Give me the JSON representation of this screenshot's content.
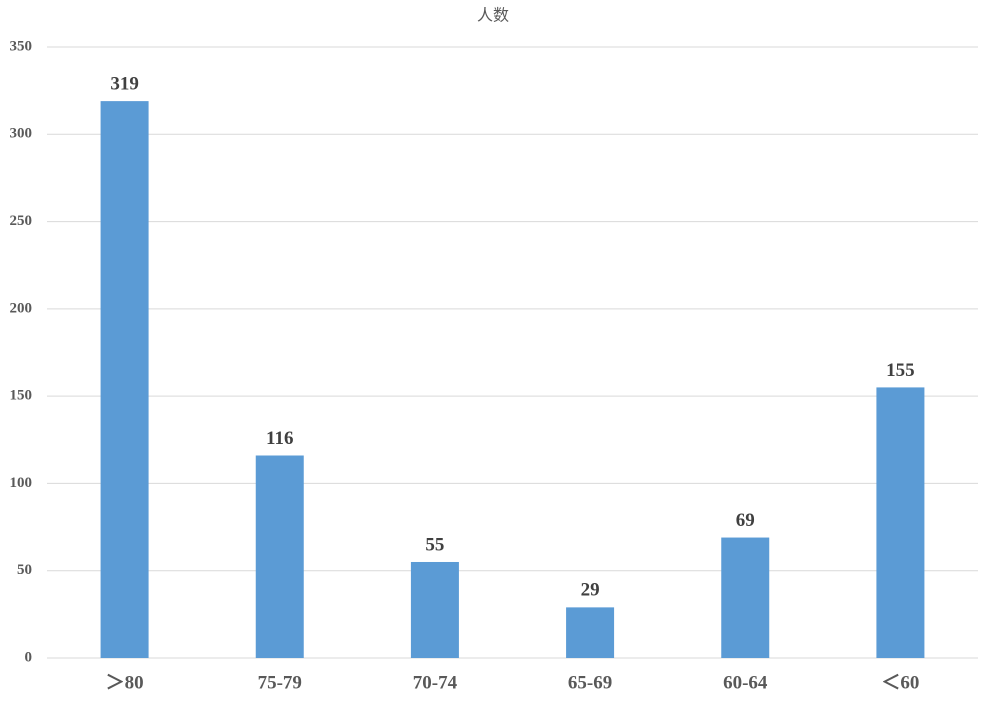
{
  "chart_data": {
    "type": "bar",
    "title": "人数",
    "categories": [
      "＞80",
      "75-79",
      "70-74",
      "65-69",
      "60-64",
      "＜60"
    ],
    "values": [
      319,
      116,
      55,
      29,
      69,
      155
    ],
    "color": "#5b9bd5",
    "ylim": [
      0,
      350
    ],
    "yticks": [
      0,
      50,
      100,
      150,
      200,
      250,
      300,
      350
    ],
    "grid": true
  }
}
